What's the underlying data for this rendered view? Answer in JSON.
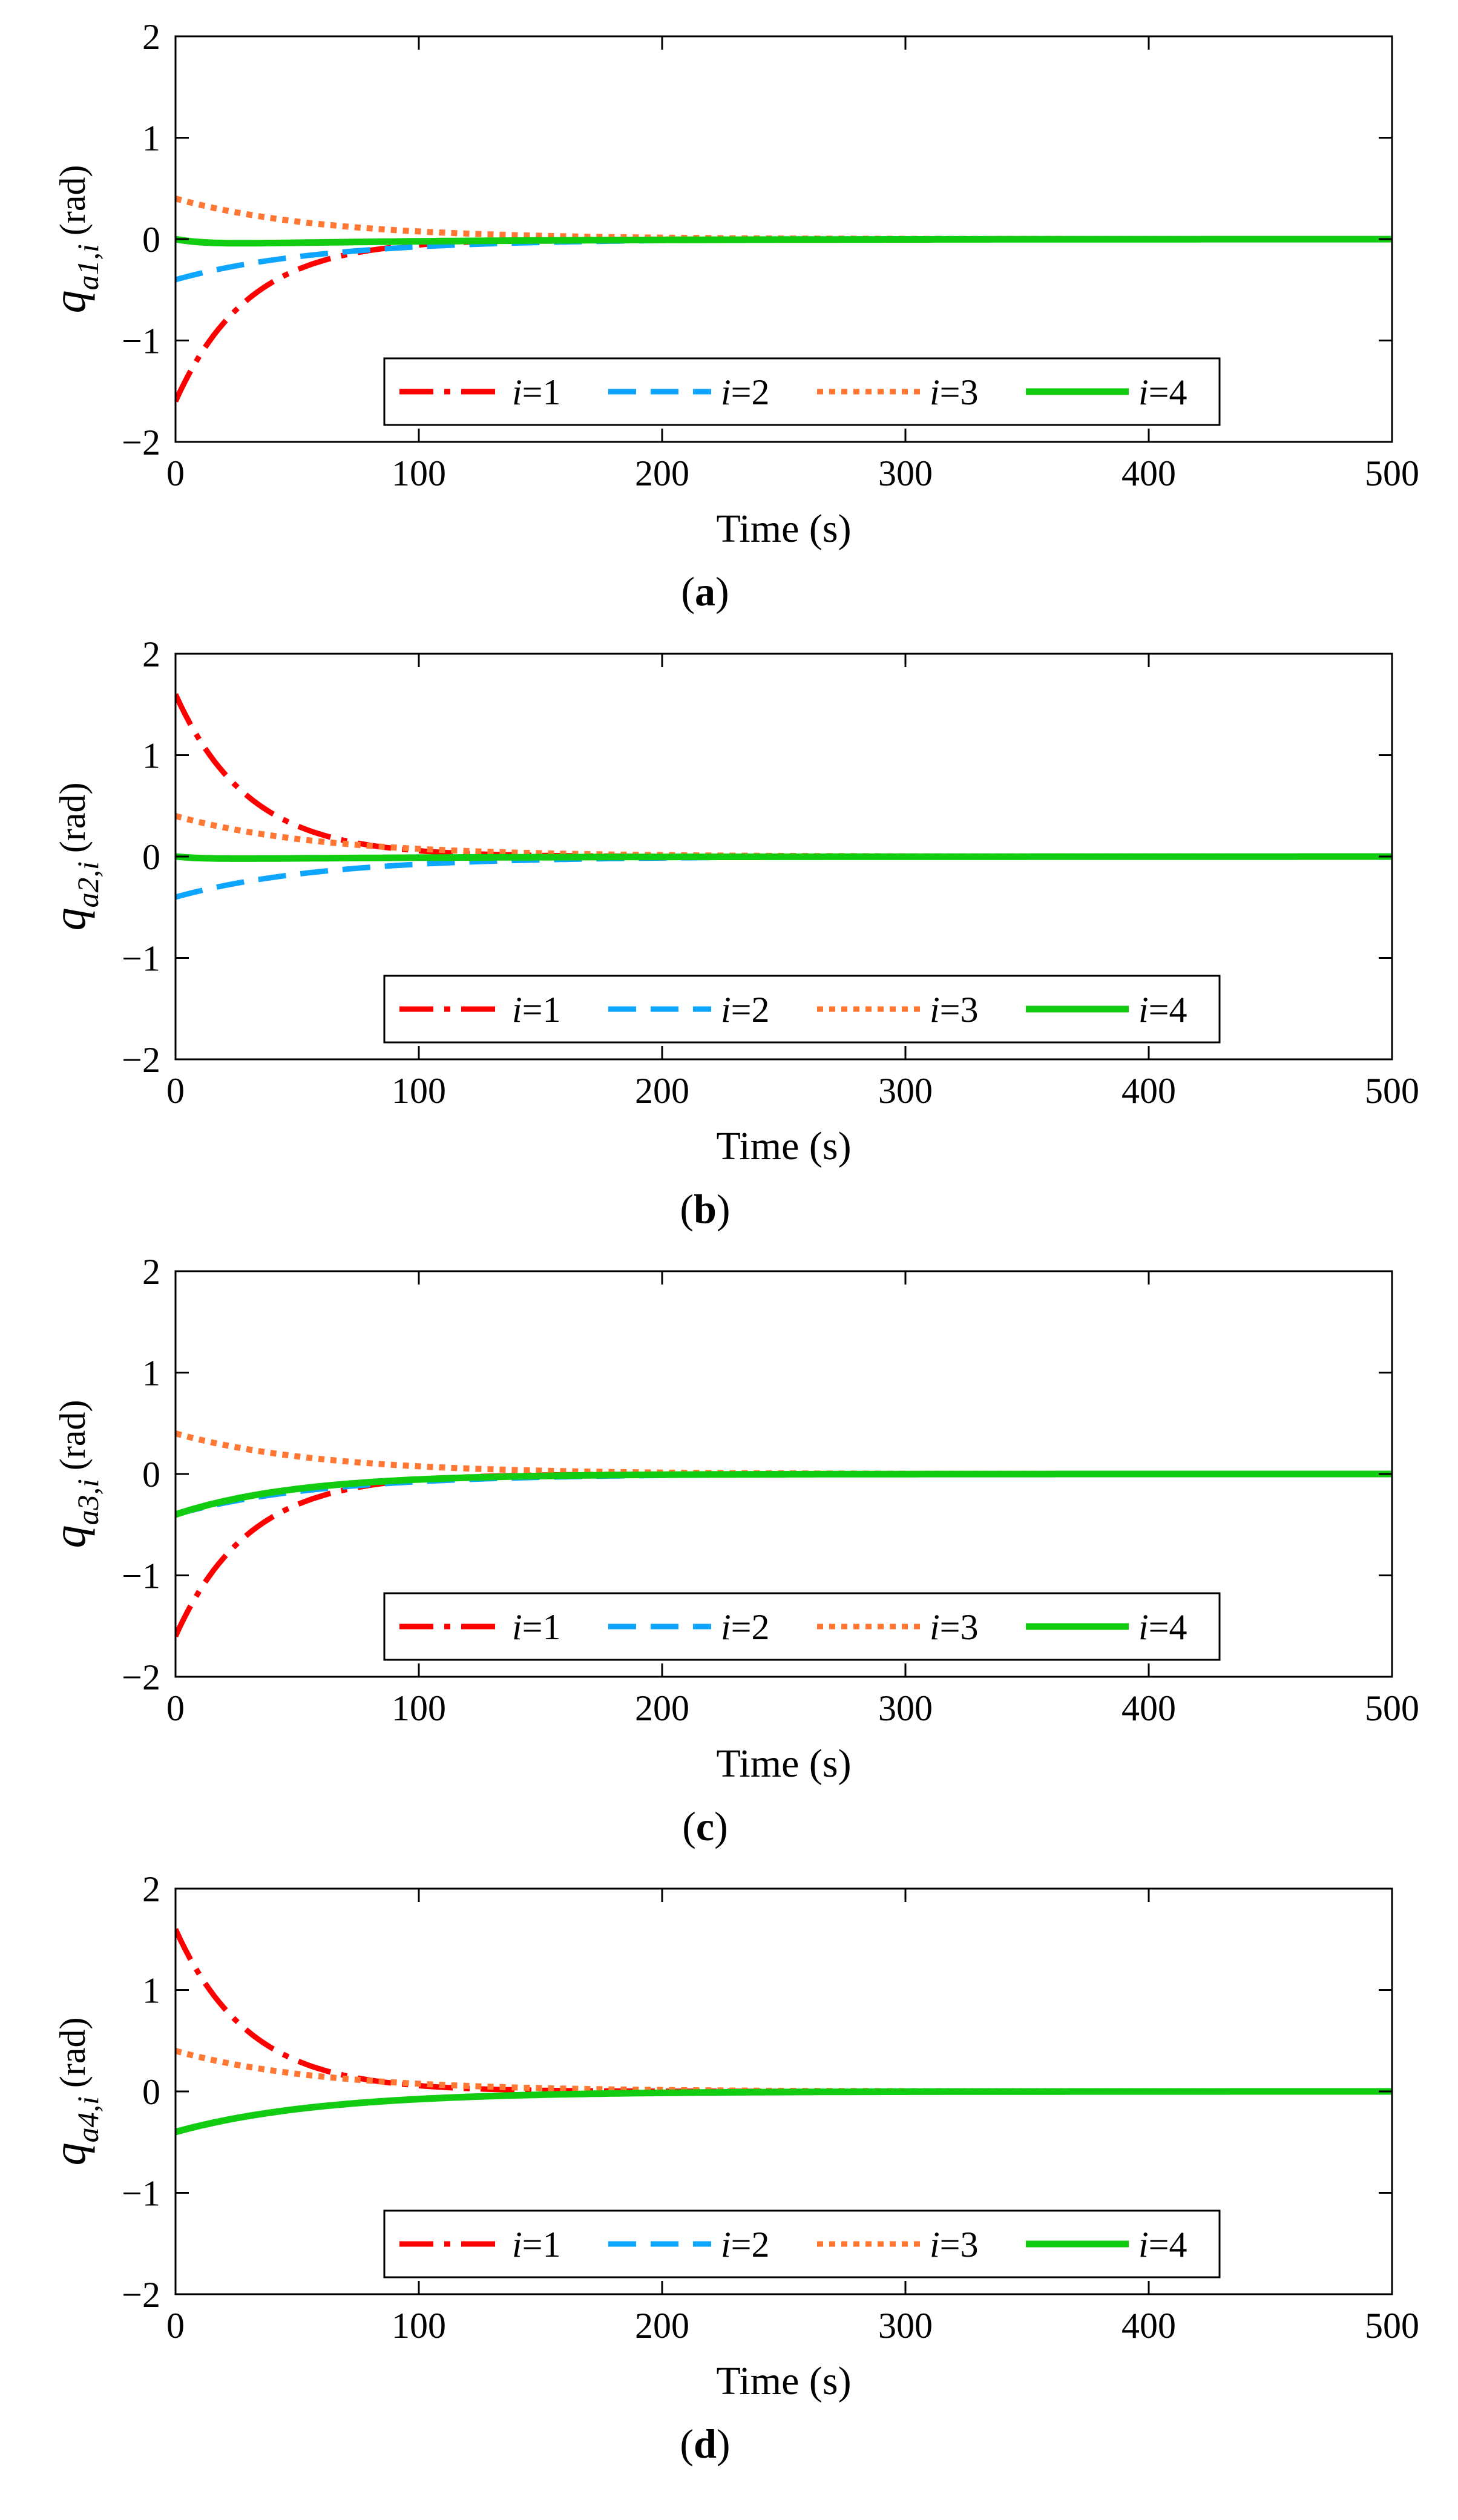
{
  "common": {
    "xlabel": "Time (s)",
    "ylabel_unit": "(rad)",
    "ylabel_symbol": "q",
    "ylabel_index": "i",
    "xticks": [
      "0",
      "100",
      "200",
      "300",
      "400",
      "500"
    ],
    "yticks": [
      "2",
      "1",
      "0",
      "−1",
      "−2"
    ],
    "legend_var": "i",
    "legend_eq": "=",
    "colors": {
      "i1": "#ff0000",
      "i2": "#0ea5ff",
      "i3": "#ff7733",
      "i4": "#11cc11"
    }
  },
  "chart_data": [
    {
      "type": "line",
      "panel_label": "a",
      "ylabel_sub": "a1,",
      "xlim": [
        0,
        500
      ],
      "ylim": [
        -2,
        2
      ],
      "grid": false,
      "legend_position": "bottom-center",
      "series": [
        {
          "name": "i=1",
          "legend_num": "1",
          "style": "dash-dot",
          "color": "#ff0000",
          "initial": -1.6,
          "tau": 30
        },
        {
          "name": "i=2",
          "legend_num": "2",
          "style": "dashed",
          "color": "#0ea5ff",
          "initial": -0.4,
          "tau": 60
        },
        {
          "name": "i=3",
          "legend_num": "3",
          "style": "dotted",
          "color": "#ff7733",
          "initial": 0.4,
          "tau": 60
        },
        {
          "name": "i=4",
          "legend_num": "4",
          "style": "solid",
          "color": "#11cc11",
          "initial": 0.0,
          "dip": -0.06,
          "tau": 40
        }
      ]
    },
    {
      "type": "line",
      "panel_label": "b",
      "ylabel_sub": "a2,",
      "xlim": [
        0,
        500
      ],
      "ylim": [
        -2,
        2
      ],
      "grid": false,
      "legend_position": "bottom-center",
      "series": [
        {
          "name": "i=1",
          "legend_num": "1",
          "style": "dash-dot",
          "color": "#ff0000",
          "initial": 1.6,
          "tau": 30
        },
        {
          "name": "i=2",
          "legend_num": "2",
          "style": "dashed",
          "color": "#0ea5ff",
          "initial": -0.4,
          "tau": 60
        },
        {
          "name": "i=3",
          "legend_num": "3",
          "style": "dotted",
          "color": "#ff7733",
          "initial": 0.4,
          "tau": 60
        },
        {
          "name": "i=4",
          "legend_num": "4",
          "style": "solid",
          "color": "#11cc11",
          "initial": 0.0,
          "dip": -0.03,
          "tau": 40
        }
      ]
    },
    {
      "type": "line",
      "panel_label": "c",
      "ylabel_sub": "a3,",
      "xlim": [
        0,
        500
      ],
      "ylim": [
        -2,
        2
      ],
      "grid": false,
      "legend_position": "bottom-center",
      "series": [
        {
          "name": "i=1",
          "legend_num": "1",
          "style": "dash-dot",
          "color": "#ff0000",
          "initial": -1.6,
          "tau": 30
        },
        {
          "name": "i=2",
          "legend_num": "2",
          "style": "dashed",
          "color": "#0ea5ff",
          "initial": -0.4,
          "tau": 60
        },
        {
          "name": "i=3",
          "legend_num": "3",
          "style": "dotted",
          "color": "#ff7733",
          "initial": 0.4,
          "tau": 60
        },
        {
          "name": "i=4",
          "legend_num": "4",
          "style": "solid",
          "color": "#11cc11",
          "initial": -0.4,
          "tau": 50
        }
      ]
    },
    {
      "type": "line",
      "panel_label": "d",
      "ylabel_sub": "a4,",
      "xlim": [
        0,
        500
      ],
      "ylim": [
        -2,
        2
      ],
      "grid": false,
      "legend_position": "bottom-center",
      "series": [
        {
          "name": "i=1",
          "legend_num": "1",
          "style": "dash-dot",
          "color": "#ff0000",
          "initial": 1.6,
          "tau": 30
        },
        {
          "name": "i=2",
          "legend_num": "2",
          "style": "dashed",
          "color": "#0ea5ff",
          "initial": -0.4,
          "tau": 60
        },
        {
          "name": "i=3",
          "legend_num": "3",
          "style": "dotted",
          "color": "#ff7733",
          "initial": 0.4,
          "tau": 60
        },
        {
          "name": "i=4",
          "legend_num": "4",
          "style": "solid",
          "color": "#11cc11",
          "initial": -0.4,
          "tau": 60
        }
      ]
    }
  ]
}
